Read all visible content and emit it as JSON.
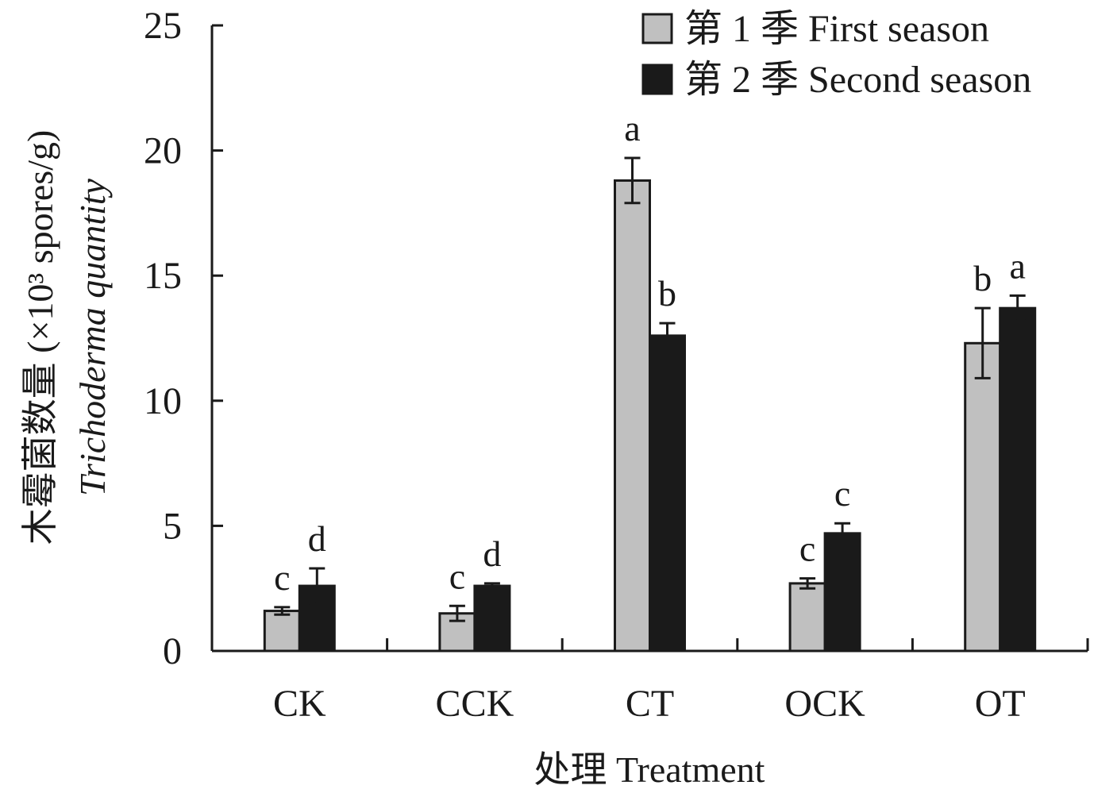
{
  "chart_data": {
    "type": "bar",
    "xlabel": "处理 Treatment",
    "ylabel_cn": "木霉菌数量 (×10³ spores/g)",
    "ylabel_en": "Trichoderma quantity",
    "ylim": [
      0,
      25
    ],
    "yticks": [
      "0",
      "5",
      "10",
      "15",
      "20",
      "25"
    ],
    "categories": [
      "CK",
      "CCK",
      "CT",
      "OCK",
      "OT"
    ],
    "legend_position": "top-right",
    "series": [
      {
        "name": "第 1 季 First season",
        "color": "#c0c0c0",
        "values": [
          1.6,
          1.5,
          18.8,
          2.7,
          12.3
        ],
        "errors": [
          0.15,
          0.3,
          0.9,
          0.2,
          1.4
        ],
        "letters": [
          "c",
          "c",
          "a",
          "c",
          "b"
        ]
      },
      {
        "name": "第 2 季 Second season",
        "color": "#1a1a1a",
        "values": [
          2.6,
          2.6,
          12.6,
          4.7,
          13.7
        ],
        "errors": [
          0.7,
          0.1,
          0.5,
          0.4,
          0.5
        ],
        "letters": [
          "d",
          "d",
          "b",
          "c",
          "a"
        ]
      }
    ]
  }
}
